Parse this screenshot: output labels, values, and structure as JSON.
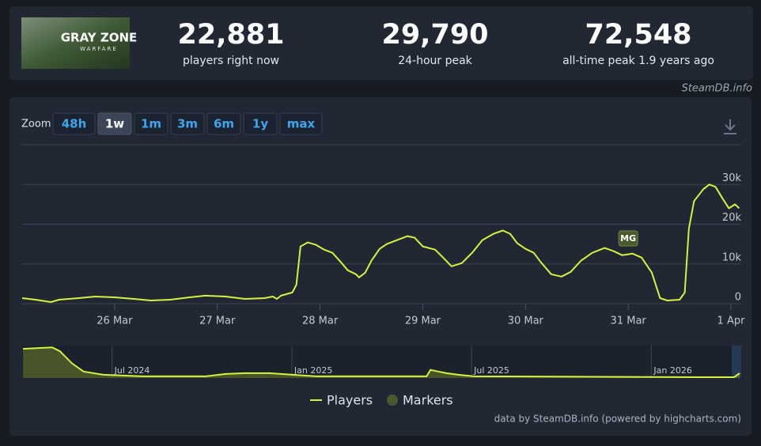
{
  "header": {
    "image_title": "GRAY ZONE",
    "image_subtitle": "WARFARE",
    "stats": [
      {
        "value": "22,881",
        "label": "players right now"
      },
      {
        "value": "29,790",
        "label": "24-hour peak"
      },
      {
        "value": "72,548",
        "label": "all-time peak 1.9 years ago"
      }
    ],
    "watermark": "SteamDB.info"
  },
  "zoom": {
    "label": "Zoom",
    "buttons": [
      "48h",
      "1w",
      "1m",
      "3m",
      "6m",
      "1y",
      "max"
    ],
    "active": "1w"
  },
  "chart_data": {
    "type": "line",
    "series": [
      {
        "name": "Players",
        "color": "#d4f23f",
        "x": [
          25.1,
          25.23,
          25.38,
          25.46,
          25.65,
          25.81,
          26,
          26.19,
          26.35,
          26.54,
          26.73,
          26.88,
          27.08,
          27.27,
          27.46,
          27.54,
          27.58,
          27.62,
          27.73,
          27.77,
          27.81,
          27.88,
          27.96,
          28.04,
          28.12,
          28.19,
          28.27,
          28.35,
          28.38,
          28.44,
          28.5,
          28.58,
          28.65,
          28.77,
          28.85,
          28.92,
          29,
          29.12,
          29.19,
          29.28,
          29.38,
          29.48,
          29.58,
          29.69,
          29.78,
          29.85,
          29.92,
          30,
          30.08,
          30.15,
          30.25,
          30.35,
          30.44,
          30.54,
          30.65,
          30.77,
          30.86,
          30.94,
          31.04,
          31.13,
          31.23,
          31.31,
          31.38,
          31.5,
          31.55,
          31.59,
          31.64,
          31.73,
          31.79,
          31.85,
          31.92,
          31.98,
          32.04,
          32.08
        ],
        "values": [
          1400,
          1000,
          400,
          1000,
          1400,
          1800,
          1600,
          1200,
          800,
          1000,
          1600,
          2000,
          1800,
          1200,
          1400,
          1800,
          1200,
          2000,
          2800,
          4800,
          14400,
          15400,
          14800,
          13600,
          12800,
          10800,
          8400,
          7400,
          6600,
          7800,
          10800,
          13800,
          15000,
          16200,
          17000,
          16600,
          14400,
          13600,
          11800,
          9400,
          10200,
          12800,
          16000,
          17600,
          18400,
          17600,
          15200,
          13800,
          12800,
          10400,
          7400,
          6800,
          8000,
          10800,
          12800,
          14000,
          13200,
          12200,
          12600,
          11600,
          7800,
          1400,
          800,
          1000,
          2800,
          18800,
          25800,
          28800,
          30000,
          29400,
          26400,
          24000,
          25000,
          24000
        ]
      }
    ],
    "markers": {
      "name": "Markers",
      "color": "#4b5a2e",
      "points": [
        {
          "x": 31.0,
          "label": "MG"
        }
      ]
    },
    "xlim": [
      25.1,
      32.1
    ],
    "xticks": [
      {
        "value": 26,
        "label": "26 Mar"
      },
      {
        "value": 27,
        "label": "27 Mar"
      },
      {
        "value": 28,
        "label": "28 Mar"
      },
      {
        "value": 29,
        "label": "29 Mar"
      },
      {
        "value": 30,
        "label": "30 Mar"
      },
      {
        "value": 31,
        "label": "31 Mar"
      },
      {
        "value": 32,
        "label": "1 Apr"
      }
    ],
    "ylim": [
      0,
      40000
    ],
    "yticks": [
      0,
      {
        "value": 10000,
        "label": "10k"
      },
      {
        "value": 20000,
        "label": "20k"
      },
      {
        "value": 30000,
        "label": "30k"
      }
    ],
    "grid": true,
    "navigator": {
      "x": [
        4.03,
        5,
        5.26,
        5.66,
        6.05,
        6.71,
        8.03,
        10.13,
        10.79,
        11.45,
        12.24,
        13.03,
        13.82,
        17.5,
        17.63,
        17.89,
        18.16,
        18.55,
        19.08,
        26.97,
        27.76,
        27.95
      ],
      "values": [
        67500,
        71000,
        62000,
        34000,
        15000,
        7500,
        3800,
        3800,
        9400,
        11200,
        11200,
        7500,
        3800,
        3800,
        18800,
        15000,
        11200,
        7500,
        3800,
        1900,
        1900,
        11000
      ],
      "xlim": [
        4,
        28
      ],
      "ylim": [
        0,
        75000
      ],
      "xticks": [
        {
          "value": 7,
          "label": "Jul 2024"
        },
        {
          "value": 13,
          "label": "Jan 2025"
        },
        {
          "value": 19,
          "label": "Jul 2025"
        },
        {
          "value": 25,
          "label": "Jan 2026"
        }
      ]
    },
    "legend": "bottom"
  },
  "credits": "data by SteamDB.info (powered by highcharts.com)"
}
